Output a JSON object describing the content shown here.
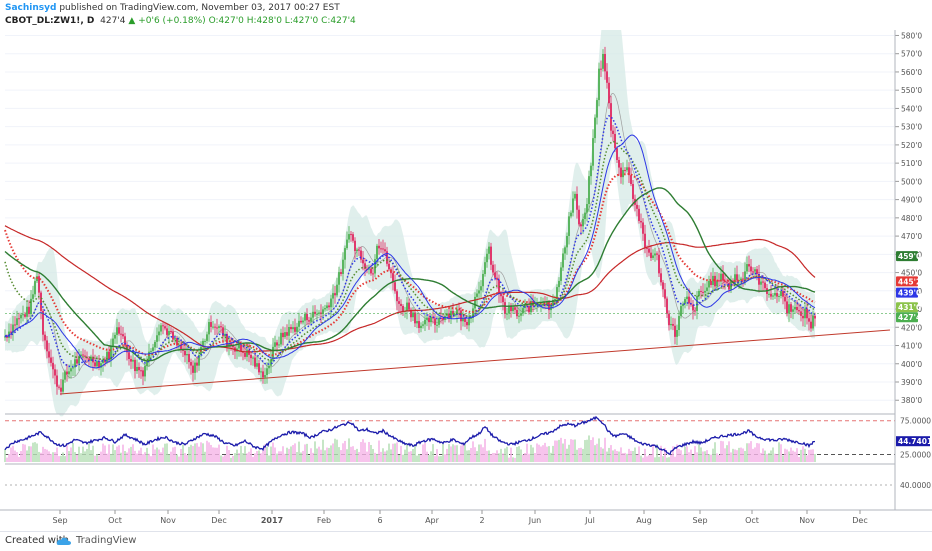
{
  "header": {
    "author": "Sachinsyd",
    "published": " published on TradingView.com, November 03, 2017 00:27 EST",
    "symbol": "CBOT_DL:ZW1!, D",
    "last": "427'4",
    "change": "+0'6 (+0.18%)",
    "ohlc": "O:427'0 H:428'0 L:427'0 C:427'4"
  },
  "footer": {
    "created_with": "Created with",
    "brand": "TradingView"
  },
  "colors": {
    "up": "#4caf50",
    "down": "#e0245e",
    "bb_fill": "#d6eae6",
    "sma_red": "#c62828",
    "sma_green": "#2e7d32",
    "sma_blue": "#2d37e6",
    "trendline": "#c0392b",
    "rsi_line": "#1a1aaa",
    "rsi_hist_pink": "#f5b5e8",
    "rsi_hist_green": "#b8e0b8"
  },
  "chart_data": [
    {
      "type": "candlestick",
      "title": "CBOT_DL:ZW1!, D",
      "ylim": [
        373,
        583
      ],
      "yticks": [
        380,
        390,
        400,
        410,
        420,
        430,
        440,
        450,
        460,
        470,
        480,
        490,
        500,
        510,
        520,
        530,
        540,
        550,
        560,
        570,
        580
      ],
      "ytick_labels": [
        "380'0",
        "390'0",
        "400'0",
        "410'0",
        "420'0",
        "430'0",
        "440'0",
        "450'0",
        "460'0",
        "470'0",
        "480'0",
        "490'0",
        "500'0",
        "510'0",
        "520'0",
        "530'0",
        "540'0",
        "550'0",
        "560'0",
        "570'0",
        "580'0"
      ],
      "xticks": [
        "Sep",
        "Oct",
        "Nov",
        "Dec",
        "2017",
        "Feb",
        "6",
        "Apr",
        "2",
        "Jun",
        "Jul",
        "Aug",
        "Sep",
        "Oct",
        "Nov",
        "Dec"
      ],
      "anchors": [
        [
          0,
          415
        ],
        [
          12,
          424
        ],
        [
          25,
          430
        ],
        [
          32,
          450
        ],
        [
          38,
          418
        ],
        [
          50,
          392
        ],
        [
          55,
          386
        ],
        [
          60,
          393
        ],
        [
          70,
          401
        ],
        [
          82,
          404
        ],
        [
          95,
          400
        ],
        [
          105,
          406
        ],
        [
          112,
          422
        ],
        [
          120,
          410
        ],
        [
          130,
          398
        ],
        [
          138,
          396
        ],
        [
          147,
          410
        ],
        [
          155,
          422
        ],
        [
          164,
          417
        ],
        [
          172,
          410
        ],
        [
          180,
          405
        ],
        [
          188,
          395
        ],
        [
          197,
          410
        ],
        [
          206,
          423
        ],
        [
          214,
          420
        ],
        [
          222,
          412
        ],
        [
          234,
          408
        ],
        [
          246,
          404
        ],
        [
          256,
          394
        ],
        [
          262,
          397
        ],
        [
          270,
          410
        ],
        [
          280,
          417
        ],
        [
          290,
          420
        ],
        [
          300,
          425
        ],
        [
          310,
          427
        ],
        [
          320,
          430
        ],
        [
          330,
          440
        ],
        [
          338,
          455
        ],
        [
          344,
          474
        ],
        [
          350,
          463
        ],
        [
          356,
          460
        ],
        [
          362,
          452
        ],
        [
          368,
          452
        ],
        [
          372,
          467
        ],
        [
          378,
          463
        ],
        [
          384,
          452
        ],
        [
          390,
          440
        ],
        [
          396,
          430
        ],
        [
          402,
          432
        ],
        [
          410,
          425
        ],
        [
          418,
          420
        ],
        [
          424,
          424
        ],
        [
          430,
          422
        ],
        [
          436,
          426
        ],
        [
          444,
          428
        ],
        [
          452,
          429
        ],
        [
          460,
          422
        ],
        [
          466,
          428
        ],
        [
          472,
          440
        ],
        [
          478,
          448
        ],
        [
          484,
          463
        ],
        [
          488,
          450
        ],
        [
          494,
          440
        ],
        [
          500,
          428
        ],
        [
          506,
          430
        ],
        [
          514,
          426
        ],
        [
          520,
          430
        ],
        [
          528,
          432
        ],
        [
          536,
          435
        ],
        [
          544,
          432
        ],
        [
          552,
          440
        ],
        [
          558,
          458
        ],
        [
          564,
          480
        ],
        [
          570,
          494
        ],
        [
          574,
          474
        ],
        [
          580,
          480
        ],
        [
          586,
          510
        ],
        [
          590,
          534
        ],
        [
          594,
          560
        ],
        [
          598,
          568
        ],
        [
          602,
          553
        ],
        [
          606,
          530
        ],
        [
          610,
          520
        ],
        [
          616,
          502
        ],
        [
          622,
          510
        ],
        [
          628,
          492
        ],
        [
          634,
          480
        ],
        [
          640,
          464
        ],
        [
          646,
          460
        ],
        [
          652,
          458
        ],
        [
          658,
          440
        ],
        [
          664,
          424
        ],
        [
          670,
          416
        ],
        [
          676,
          430
        ],
        [
          682,
          435
        ],
        [
          688,
          428
        ],
        [
          694,
          438
        ],
        [
          700,
          440
        ],
        [
          706,
          446
        ],
        [
          712,
          444
        ],
        [
          718,
          448
        ],
        [
          724,
          442
        ],
        [
          730,
          448
        ],
        [
          736,
          446
        ],
        [
          742,
          455
        ],
        [
          746,
          452
        ],
        [
          752,
          448
        ],
        [
          758,
          442
        ],
        [
          764,
          440
        ],
        [
          770,
          436
        ],
        [
          776,
          440
        ],
        [
          782,
          430
        ],
        [
          788,
          432
        ],
        [
          794,
          426
        ],
        [
          800,
          428
        ],
        [
          806,
          421
        ],
        [
          810,
          427
        ]
      ],
      "last_label": "427'4",
      "price_labels": [
        {
          "value": "459'0",
          "price": 459,
          "color": "#2e7d32"
        },
        {
          "value": "445'2",
          "price": 445.2,
          "color": "#e53935"
        },
        {
          "value": "439'0",
          "price": 439,
          "color": "#2d37e6"
        },
        {
          "value": "431'0",
          "price": 431,
          "color": "#8bc34a"
        },
        {
          "value": "427'4",
          "price": 427.5,
          "color": "#4caf50"
        }
      ]
    },
    {
      "type": "line",
      "title": "RSI",
      "ylim": [
        14,
        82
      ],
      "ytick_labels": [
        "75.0000",
        "25.0000"
      ],
      "levels": [
        75,
        25
      ],
      "last_value": "44.7401",
      "anchors": [
        [
          0,
          34
        ],
        [
          10,
          44
        ],
        [
          20,
          48
        ],
        [
          28,
          53
        ],
        [
          36,
          58
        ],
        [
          44,
          49
        ],
        [
          52,
          40
        ],
        [
          60,
          38
        ],
        [
          70,
          47
        ],
        [
          80,
          42
        ],
        [
          90,
          46
        ],
        [
          100,
          50
        ],
        [
          110,
          44
        ],
        [
          120,
          54
        ],
        [
          130,
          48
        ],
        [
          140,
          40
        ],
        [
          150,
          47
        ],
        [
          160,
          51
        ],
        [
          170,
          43
        ],
        [
          180,
          40
        ],
        [
          190,
          49
        ],
        [
          200,
          56
        ],
        [
          210,
          52
        ],
        [
          220,
          42
        ],
        [
          230,
          38
        ],
        [
          240,
          45
        ],
        [
          250,
          36
        ],
        [
          258,
          34
        ],
        [
          266,
          44
        ],
        [
          276,
          54
        ],
        [
          286,
          58
        ],
        [
          296,
          57
        ],
        [
          306,
          50
        ],
        [
          316,
          58
        ],
        [
          326,
          62
        ],
        [
          336,
          68
        ],
        [
          346,
          73
        ],
        [
          354,
          60
        ],
        [
          362,
          62
        ],
        [
          370,
          56
        ],
        [
          378,
          60
        ],
        [
          388,
          50
        ],
        [
          398,
          42
        ],
        [
          408,
          38
        ],
        [
          418,
          45
        ],
        [
          428,
          48
        ],
        [
          438,
          42
        ],
        [
          448,
          47
        ],
        [
          458,
          40
        ],
        [
          466,
          50
        ],
        [
          474,
          56
        ],
        [
          480,
          66
        ],
        [
          488,
          52
        ],
        [
          496,
          44
        ],
        [
          506,
          40
        ],
        [
          516,
          44
        ],
        [
          526,
          48
        ],
        [
          536,
          54
        ],
        [
          546,
          58
        ],
        [
          554,
          66
        ],
        [
          562,
          70
        ],
        [
          570,
          68
        ],
        [
          578,
          72
        ],
        [
          586,
          76
        ],
        [
          592,
          80
        ],
        [
          598,
          72
        ],
        [
          604,
          58
        ],
        [
          610,
          52
        ],
        [
          618,
          56
        ],
        [
          626,
          50
        ],
        [
          634,
          42
        ],
        [
          642,
          40
        ],
        [
          650,
          38
        ],
        [
          658,
          32
        ],
        [
          664,
          26
        ],
        [
          672,
          36
        ],
        [
          680,
          40
        ],
        [
          688,
          44
        ],
        [
          696,
          42
        ],
        [
          706,
          48
        ],
        [
          716,
          52
        ],
        [
          726,
          54
        ],
        [
          736,
          56
        ],
        [
          744,
          60
        ],
        [
          750,
          52
        ],
        [
          760,
          48
        ],
        [
          770,
          46
        ],
        [
          780,
          48
        ],
        [
          790,
          44
        ],
        [
          798,
          42
        ],
        [
          804,
          38
        ],
        [
          810,
          45
        ]
      ]
    },
    {
      "type": "line",
      "title": "lower-pane",
      "ytick_labels": [
        "40.0000"
      ]
    }
  ]
}
